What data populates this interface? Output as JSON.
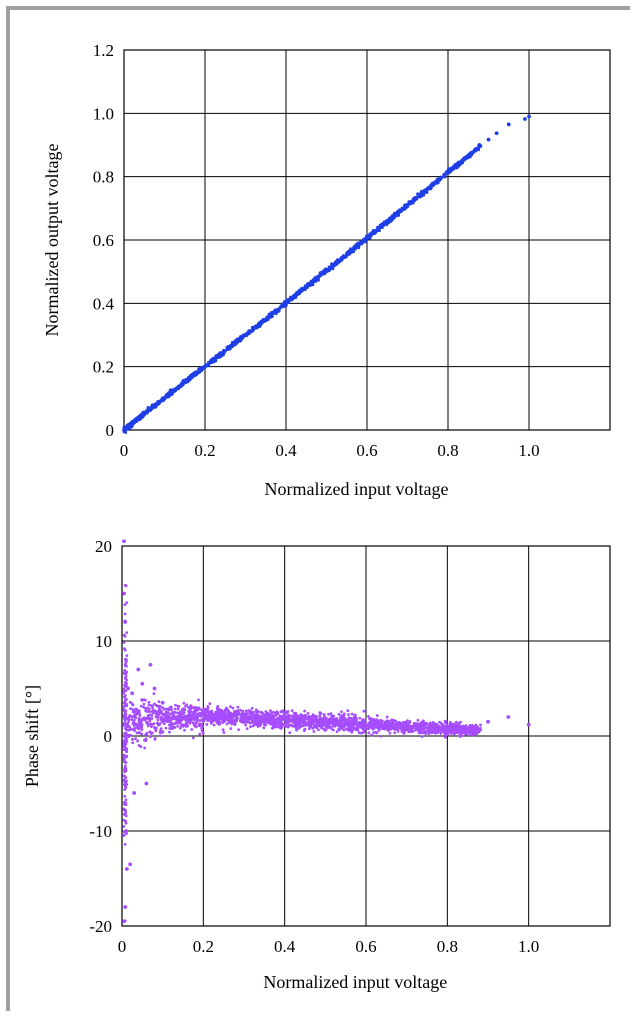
{
  "chart_data": [
    {
      "type": "scatter",
      "title": "",
      "xlabel": "Normalized input voltage",
      "ylabel": "Normalized output voltage",
      "xlim": [
        0,
        1.2
      ],
      "ylim": [
        0,
        1.2
      ],
      "xticks": [
        0,
        0.2,
        0.4,
        0.6,
        0.8,
        1.0
      ],
      "xtick_labels": [
        "0",
        "0.2",
        "0.4",
        "0.6",
        "0.8",
        "1.0"
      ],
      "yticks": [
        0,
        0.2,
        0.4,
        0.6,
        0.8,
        1.0,
        1.2
      ],
      "ytick_labels": [
        "0",
        "0.2",
        "0.4",
        "0.6",
        "0.8",
        "1.0",
        "1.2"
      ],
      "grid": true,
      "color": "#1f3fe6",
      "series": [
        {
          "x": [
            0.0,
            0.005,
            0.01,
            0.02,
            0.03,
            0.04,
            0.05,
            0.06,
            0.08,
            0.1,
            0.12,
            0.14,
            0.16,
            0.18,
            0.2,
            0.22,
            0.24,
            0.26,
            0.28,
            0.3,
            0.32,
            0.34,
            0.36,
            0.38,
            0.4,
            0.42,
            0.44,
            0.46,
            0.48,
            0.5,
            0.52,
            0.54,
            0.56,
            0.58,
            0.6,
            0.62,
            0.64,
            0.66,
            0.68,
            0.7,
            0.72,
            0.74,
            0.76,
            0.78,
            0.8,
            0.82,
            0.84,
            0.86,
            0.88,
            0.9,
            0.92,
            0.95,
            0.99,
            1.0
          ],
          "y": [
            0.0,
            0.006,
            0.011,
            0.021,
            0.031,
            0.041,
            0.051,
            0.061,
            0.081,
            0.101,
            0.121,
            0.141,
            0.161,
            0.181,
            0.2,
            0.22,
            0.24,
            0.26,
            0.28,
            0.299,
            0.319,
            0.339,
            0.36,
            0.38,
            0.401,
            0.421,
            0.442,
            0.462,
            0.483,
            0.503,
            0.524,
            0.544,
            0.565,
            0.586,
            0.606,
            0.627,
            0.648,
            0.668,
            0.689,
            0.71,
            0.731,
            0.751,
            0.772,
            0.793,
            0.814,
            0.834,
            0.855,
            0.876,
            0.897,
            0.917,
            0.937,
            0.965,
            0.982,
            0.99
          ]
        }
      ]
    },
    {
      "type": "scatter",
      "title": "",
      "xlabel": "Normalized input voltage",
      "ylabel": "Phase shift [°]",
      "xlim": [
        0,
        1.2
      ],
      "ylim": [
        -20,
        20
      ],
      "xticks": [
        0,
        0.2,
        0.4,
        0.6,
        0.8,
        1.0
      ],
      "xtick_labels": [
        "0",
        "0.2",
        "0.4",
        "0.6",
        "0.8",
        "1.0"
      ],
      "yticks": [
        -20,
        -10,
        0,
        10,
        20
      ],
      "ytick_labels": [
        "-20",
        "-10",
        "0",
        "10",
        "20"
      ],
      "grid": true,
      "color": "#a64dff",
      "series": [
        {
          "x": [
            0.005,
            0.005,
            0.005,
            0.008,
            0.008,
            0.01,
            0.01,
            0.012,
            0.015,
            0.02,
            0.025,
            0.03,
            0.04,
            0.05,
            0.06,
            0.07,
            0.08,
            0.1,
            0.12,
            0.15,
            0.18,
            0.2,
            0.22,
            0.25,
            0.28,
            0.3,
            0.33,
            0.36,
            0.4,
            0.44,
            0.48,
            0.5,
            0.52,
            0.55,
            0.58,
            0.6,
            0.63,
            0.66,
            0.7,
            0.73,
            0.76,
            0.8,
            0.83,
            0.86,
            0.9,
            0.95,
            1.0
          ],
          "y": [
            20.5,
            -19.5,
            15.0,
            -18.0,
            12.0,
            -10.0,
            8.0,
            -14.0,
            5.0,
            -13.5,
            4.5,
            -6.0,
            7.0,
            5.5,
            -5.0,
            7.5,
            5.0,
            3.5,
            3.0,
            2.8,
            2.6,
            2.4,
            2.2,
            2.0,
            2.2,
            1.8,
            1.9,
            1.7,
            1.8,
            1.5,
            1.6,
            1.4,
            1.3,
            1.2,
            1.0,
            1.1,
            0.9,
            0.8,
            0.7,
            0.6,
            0.5,
            0.4,
            0.5,
            0.4,
            1.5,
            2.0,
            1.2
          ]
        }
      ]
    }
  ]
}
